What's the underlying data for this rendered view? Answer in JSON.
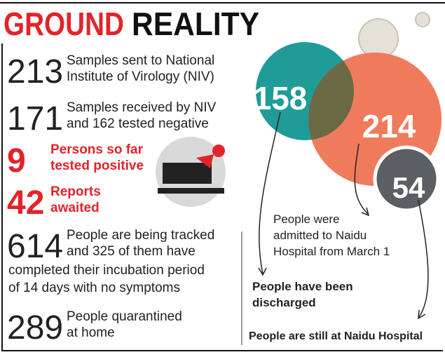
{
  "title": [
    "GROUND",
    "REALITY"
  ],
  "stats": [
    {
      "number": "213",
      "color": "#222222",
      "lines": [
        "Samples sent to National",
        "Institute of Virology (NIV)"
      ]
    },
    {
      "number": "171",
      "color": "#222222",
      "lines": [
        "Samples received by NIV",
        "and 162 tested negative"
      ]
    },
    {
      "number": "9",
      "color": "#e3232b",
      "lines": [
        "Persons so far",
        "tested positive"
      ]
    },
    {
      "number": "42",
      "color": "#e3232b",
      "lines": [
        "Reports",
        "awaited"
      ]
    },
    {
      "number": "614",
      "color": "#222222",
      "lines": [
        "People are being tracked",
        "and 325 of them have"
      ],
      "continued": [
        "completed their incubation period",
        "of 14 days with no symptoms"
      ]
    },
    {
      "number": "289",
      "color": "#222222",
      "lines": [
        "People quarantined",
        "at home"
      ]
    }
  ],
  "circles": [
    {
      "number": "158",
      "color": "#1f9c98",
      "lines": [
        "People have been",
        "discharged"
      ]
    },
    {
      "number": "214",
      "color": "#f07b5c",
      "lines": [
        "People were",
        "admitted to Naidu",
        "Hospital from March 1"
      ]
    },
    {
      "number": "54",
      "color": "#5b5f64",
      "lines": [
        "People are still at Naidu Hospital"
      ]
    }
  ]
}
